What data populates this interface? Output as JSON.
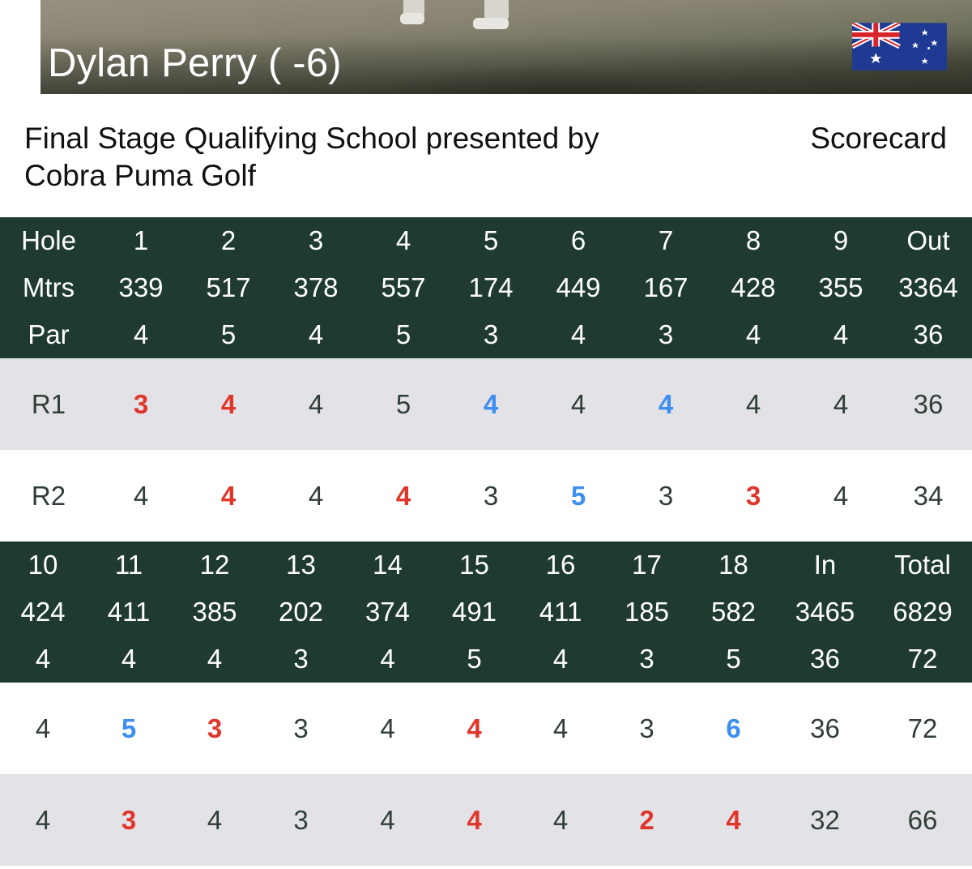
{
  "player": {
    "name": "Dylan Perry ( -6)",
    "flag_icon": "australia-flag-icon"
  },
  "event": {
    "title": "Final Stage Qualifying School presented by Cobra Puma Golf",
    "scorecard_label": "Scorecard"
  },
  "colors": {
    "header_bg": "#1f3b2f",
    "under_par": "#e0352a",
    "over_par": "#3e8ef0",
    "row_grey": "#e2e2e7"
  },
  "front_nine": {
    "hole": [
      "Hole",
      "1",
      "2",
      "3",
      "4",
      "5",
      "6",
      "7",
      "8",
      "9",
      "Out"
    ],
    "mtrs": [
      "Mtrs",
      "339",
      "517",
      "378",
      "557",
      "174",
      "449",
      "167",
      "428",
      "355",
      "3364"
    ],
    "par": [
      "Par",
      "4",
      "5",
      "4",
      "5",
      "3",
      "4",
      "3",
      "4",
      "4",
      "36"
    ],
    "rounds": [
      {
        "cells": [
          "R1",
          "3",
          "4",
          "4",
          "5",
          "4",
          "4",
          "4",
          "4",
          "4",
          "36"
        ],
        "status": [
          "",
          "under",
          "under",
          "",
          "",
          "over",
          "",
          "over",
          "",
          "",
          ""
        ]
      },
      {
        "cells": [
          "R2",
          "4",
          "4",
          "4",
          "4",
          "3",
          "5",
          "3",
          "3",
          "4",
          "34"
        ],
        "status": [
          "",
          "",
          "under",
          "",
          "under",
          "",
          "over",
          "",
          "under",
          "",
          ""
        ]
      }
    ]
  },
  "back_nine": {
    "hole": [
      "10",
      "11",
      "12",
      "13",
      "14",
      "15",
      "16",
      "17",
      "18",
      "In",
      "Total"
    ],
    "mtrs": [
      "424",
      "411",
      "385",
      "202",
      "374",
      "491",
      "411",
      "185",
      "582",
      "3465",
      "6829"
    ],
    "par": [
      "4",
      "4",
      "4",
      "3",
      "4",
      "5",
      "4",
      "3",
      "5",
      "36",
      "72"
    ],
    "rounds": [
      {
        "cells": [
          "4",
          "5",
          "3",
          "3",
          "4",
          "4",
          "4",
          "3",
          "6",
          "36",
          "72"
        ],
        "status": [
          "",
          "over",
          "under",
          "",
          "",
          "under",
          "",
          "",
          "over",
          "",
          ""
        ]
      },
      {
        "cells": [
          "4",
          "3",
          "4",
          "3",
          "4",
          "4",
          "4",
          "2",
          "4",
          "32",
          "66"
        ],
        "status": [
          "",
          "under",
          "",
          "",
          "",
          "under",
          "",
          "under",
          "under",
          "",
          ""
        ]
      }
    ]
  }
}
